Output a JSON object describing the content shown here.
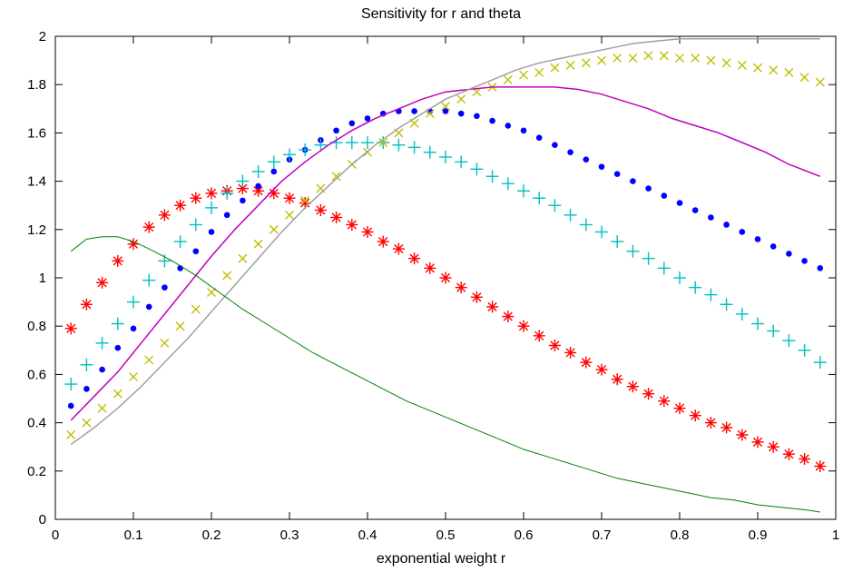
{
  "chart_data": {
    "type": "line",
    "title": "Sensitivity for r and theta",
    "xlabel": "exponential weight r",
    "ylabel": "",
    "xlim": [
      0,
      1
    ],
    "ylim": [
      0,
      2
    ],
    "xticks": [
      "0",
      "0.1",
      "0.2",
      "0.3",
      "0.4",
      "0.5",
      "0.6",
      "0.7",
      "0.8",
      "0.9",
      "1"
    ],
    "yticks": [
      "0",
      "0.2",
      "0.4",
      "0.6",
      "0.8",
      "1",
      "1.2",
      "1.4",
      "1.6",
      "1.8",
      "2"
    ],
    "grid": false,
    "legend": "none",
    "series": [
      {
        "style": "asterisk",
        "color": "#ff0000",
        "x": [
          0.02,
          0.04,
          0.06,
          0.08,
          0.1,
          0.12,
          0.14,
          0.16,
          0.18,
          0.2,
          0.22,
          0.24,
          0.26,
          0.28,
          0.3,
          0.32,
          0.34,
          0.36,
          0.38,
          0.4,
          0.42,
          0.44,
          0.46,
          0.48,
          0.5,
          0.52,
          0.54,
          0.56,
          0.58,
          0.6,
          0.62,
          0.64,
          0.66,
          0.68,
          0.7,
          0.72,
          0.74,
          0.76,
          0.78,
          0.8,
          0.82,
          0.84,
          0.86,
          0.88,
          0.9,
          0.92,
          0.94,
          0.96,
          0.98
        ],
        "y": [
          0.79,
          0.89,
          0.98,
          1.07,
          1.14,
          1.21,
          1.26,
          1.3,
          1.33,
          1.35,
          1.36,
          1.37,
          1.36,
          1.35,
          1.33,
          1.31,
          1.28,
          1.25,
          1.22,
          1.19,
          1.15,
          1.12,
          1.08,
          1.04,
          1.0,
          0.96,
          0.92,
          0.88,
          0.84,
          0.8,
          0.76,
          0.72,
          0.69,
          0.65,
          0.62,
          0.58,
          0.55,
          0.52,
          0.49,
          0.46,
          0.43,
          0.4,
          0.38,
          0.35,
          0.32,
          0.3,
          0.27,
          0.25,
          0.22
        ]
      },
      {
        "style": "dot",
        "color": "#0000ff",
        "x": [
          0.02,
          0.04,
          0.06,
          0.08,
          0.1,
          0.12,
          0.14,
          0.16,
          0.18,
          0.2,
          0.22,
          0.24,
          0.26,
          0.28,
          0.3,
          0.32,
          0.34,
          0.36,
          0.38,
          0.4,
          0.42,
          0.44,
          0.46,
          0.48,
          0.5,
          0.52,
          0.54,
          0.56,
          0.58,
          0.6,
          0.62,
          0.64,
          0.66,
          0.68,
          0.7,
          0.72,
          0.74,
          0.76,
          0.78,
          0.8,
          0.82,
          0.84,
          0.86,
          0.88,
          0.9,
          0.92,
          0.94,
          0.96,
          0.98
        ],
        "y": [
          0.47,
          0.54,
          0.62,
          0.71,
          0.79,
          0.88,
          0.96,
          1.04,
          1.11,
          1.19,
          1.26,
          1.32,
          1.38,
          1.44,
          1.49,
          1.53,
          1.57,
          1.61,
          1.64,
          1.66,
          1.68,
          1.69,
          1.69,
          1.69,
          1.69,
          1.68,
          1.67,
          1.65,
          1.63,
          1.61,
          1.58,
          1.55,
          1.52,
          1.49,
          1.46,
          1.43,
          1.4,
          1.37,
          1.34,
          1.31,
          1.28,
          1.25,
          1.22,
          1.19,
          1.16,
          1.13,
          1.1,
          1.07,
          1.04
        ]
      },
      {
        "style": "plus",
        "color": "#00bfbf",
        "x": [
          0.02,
          0.04,
          0.06,
          0.08,
          0.1,
          0.12,
          0.14,
          0.16,
          0.18,
          0.2,
          0.22,
          0.24,
          0.26,
          0.28,
          0.3,
          0.32,
          0.34,
          0.36,
          0.38,
          0.4,
          0.42,
          0.44,
          0.46,
          0.48,
          0.5,
          0.52,
          0.54,
          0.56,
          0.58,
          0.6,
          0.62,
          0.64,
          0.66,
          0.68,
          0.7,
          0.72,
          0.74,
          0.76,
          0.78,
          0.8,
          0.82,
          0.84,
          0.86,
          0.88,
          0.9,
          0.92,
          0.94,
          0.96,
          0.98
        ],
        "y": [
          0.56,
          0.64,
          0.73,
          0.81,
          0.9,
          0.99,
          1.07,
          1.15,
          1.22,
          1.29,
          1.35,
          1.4,
          1.44,
          1.48,
          1.51,
          1.53,
          1.55,
          1.56,
          1.56,
          1.56,
          1.56,
          1.55,
          1.54,
          1.52,
          1.5,
          1.48,
          1.45,
          1.42,
          1.39,
          1.36,
          1.33,
          1.3,
          1.26,
          1.22,
          1.19,
          1.15,
          1.11,
          1.08,
          1.04,
          1.0,
          0.96,
          0.93,
          0.89,
          0.85,
          0.81,
          0.78,
          0.74,
          0.7,
          0.65
        ]
      },
      {
        "style": "cross",
        "color": "#bfbf00",
        "x": [
          0.02,
          0.04,
          0.06,
          0.08,
          0.1,
          0.12,
          0.14,
          0.16,
          0.18,
          0.2,
          0.22,
          0.24,
          0.26,
          0.28,
          0.3,
          0.32,
          0.34,
          0.36,
          0.38,
          0.4,
          0.42,
          0.44,
          0.46,
          0.48,
          0.5,
          0.52,
          0.54,
          0.56,
          0.58,
          0.6,
          0.62,
          0.64,
          0.66,
          0.68,
          0.7,
          0.72,
          0.74,
          0.76,
          0.78,
          0.8,
          0.82,
          0.84,
          0.86,
          0.88,
          0.9,
          0.92,
          0.94,
          0.96,
          0.98
        ],
        "y": [
          0.35,
          0.4,
          0.46,
          0.52,
          0.59,
          0.66,
          0.73,
          0.8,
          0.87,
          0.94,
          1.01,
          1.08,
          1.14,
          1.2,
          1.26,
          1.32,
          1.37,
          1.42,
          1.47,
          1.52,
          1.56,
          1.6,
          1.64,
          1.68,
          1.71,
          1.74,
          1.77,
          1.79,
          1.82,
          1.84,
          1.85,
          1.87,
          1.88,
          1.89,
          1.9,
          1.91,
          1.91,
          1.92,
          1.92,
          1.91,
          1.91,
          1.9,
          1.89,
          1.88,
          1.87,
          1.86,
          1.85,
          1.83,
          1.81
        ]
      },
      {
        "style": "line",
        "color": "#bf00bf",
        "x": [
          0.02,
          0.05,
          0.08,
          0.11,
          0.14,
          0.17,
          0.2,
          0.23,
          0.26,
          0.29,
          0.32,
          0.35,
          0.38,
          0.41,
          0.44,
          0.47,
          0.5,
          0.53,
          0.56,
          0.59,
          0.61,
          0.64,
          0.67,
          0.7,
          0.73,
          0.76,
          0.79,
          0.82,
          0.85,
          0.88,
          0.91,
          0.94,
          0.98
        ],
        "y": [
          0.41,
          0.51,
          0.61,
          0.73,
          0.85,
          0.97,
          1.09,
          1.2,
          1.3,
          1.4,
          1.48,
          1.55,
          1.61,
          1.66,
          1.7,
          1.74,
          1.77,
          1.78,
          1.79,
          1.79,
          1.79,
          1.79,
          1.78,
          1.76,
          1.73,
          1.7,
          1.66,
          1.63,
          1.6,
          1.56,
          1.52,
          1.47,
          1.42
        ]
      },
      {
        "style": "line",
        "color": "#a0a0a0",
        "x": [
          0.02,
          0.05,
          0.08,
          0.11,
          0.14,
          0.17,
          0.2,
          0.23,
          0.26,
          0.29,
          0.32,
          0.35,
          0.38,
          0.41,
          0.44,
          0.47,
          0.5,
          0.53,
          0.56,
          0.59,
          0.62,
          0.65,
          0.68,
          0.71,
          0.74,
          0.77,
          0.8,
          0.83,
          0.86,
          0.89,
          0.92,
          0.95,
          0.98
        ],
        "y": [
          0.31,
          0.38,
          0.46,
          0.55,
          0.65,
          0.75,
          0.86,
          0.97,
          1.08,
          1.19,
          1.29,
          1.38,
          1.47,
          1.55,
          1.62,
          1.68,
          1.74,
          1.78,
          1.82,
          1.86,
          1.89,
          1.91,
          1.93,
          1.95,
          1.97,
          1.98,
          1.99,
          1.99,
          1.99,
          1.99,
          1.99,
          1.99,
          1.99
        ]
      },
      {
        "style": "line-thin",
        "color": "#008000",
        "x": [
          0.02,
          0.04,
          0.06,
          0.08,
          0.1,
          0.12,
          0.15,
          0.18,
          0.21,
          0.24,
          0.27,
          0.3,
          0.33,
          0.36,
          0.39,
          0.42,
          0.45,
          0.48,
          0.51,
          0.54,
          0.57,
          0.6,
          0.63,
          0.66,
          0.69,
          0.72,
          0.75,
          0.78,
          0.81,
          0.84,
          0.87,
          0.9,
          0.93,
          0.96,
          0.98
        ],
        "y": [
          1.11,
          1.16,
          1.17,
          1.17,
          1.15,
          1.12,
          1.07,
          1.01,
          0.94,
          0.87,
          0.81,
          0.75,
          0.69,
          0.64,
          0.59,
          0.54,
          0.49,
          0.45,
          0.41,
          0.37,
          0.33,
          0.29,
          0.26,
          0.23,
          0.2,
          0.17,
          0.15,
          0.13,
          0.11,
          0.09,
          0.08,
          0.06,
          0.05,
          0.04,
          0.03
        ]
      }
    ]
  }
}
